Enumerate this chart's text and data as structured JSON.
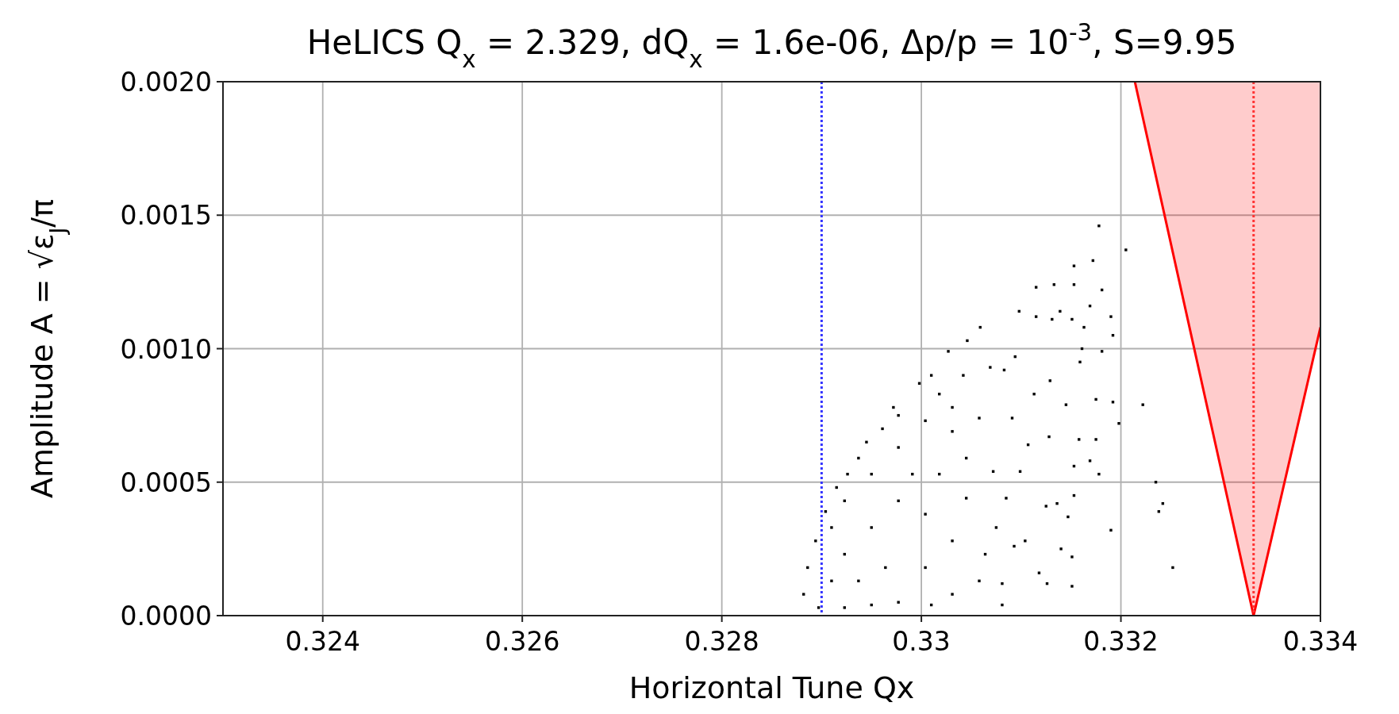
{
  "chart_data": {
    "type": "scatter",
    "title": "HeLICS Q$_{x}$ = 2.329, dQ$_{x}$ = 1.6e-06, Δp/p = 10$^{-3}$, S=9.95",
    "xlabel": "Horizontal Tune Qx",
    "ylabel": "Amplitude A = √ε$_{J}$/π",
    "xlim": [
      0.323,
      0.334
    ],
    "xticks": [
      0.324,
      0.326,
      0.328,
      0.33,
      0.332,
      0.334
    ],
    "ylim": [
      0,
      0.002
    ],
    "yticks": [
      {
        "value": 0,
        "label": "0.0000"
      },
      {
        "value": 0.0005,
        "label": "0.0005"
      },
      {
        "value": 0.001,
        "label": "0.0010"
      },
      {
        "value": 0.0015,
        "label": "0.0015"
      },
      {
        "value": 0.002,
        "label": "0.0020"
      }
    ],
    "grid": true,
    "marker": "square",
    "ref_lines": [
      {
        "axis": "x",
        "value": 0.329,
        "color": "#3333ff",
        "line_style": "dotted"
      },
      {
        "axis": "x",
        "value": 0.33333,
        "color": "#ff3333",
        "line_style": "dotted"
      }
    ],
    "series": [
      {
        "type": "line",
        "marker": "none",
        "color": "#ff0000",
        "x": [
          0.33214,
          0.33333,
          0.334
        ],
        "values": [
          0.002,
          0,
          0.00108
        ],
        "lower": [
          0.002,
          0,
          0.00108
        ],
        "upper": [
          0.002,
          0.002,
          0.002
        ]
      },
      {
        "color": "#000000",
        "x": [
          0.33178,
          0.33205,
          0.33172,
          0.33153,
          0.33181,
          0.33115,
          0.33133,
          0.33153,
          0.33098,
          0.33139,
          0.3319,
          0.33169,
          0.33115,
          0.33131,
          0.33151,
          0.33059,
          0.33192,
          0.33163,
          0.33046,
          0.33181,
          0.33161,
          0.33027,
          0.33222,
          0.33198,
          0.33192,
          0.33175,
          0.33235,
          0.33242,
          0.33238,
          0.33252,
          0.3319,
          0.33178,
          0.33175,
          0.33158,
          0.33169,
          0.33153,
          0.33153,
          0.33147,
          0.33151,
          0.33151,
          0.33126,
          0.3314,
          0.33125,
          0.33136,
          0.33081,
          0.33081,
          0.33118,
          0.33093,
          0.33104,
          0.33128,
          0.33145,
          0.33159,
          0.32998,
          0.3301,
          0.33042,
          0.33069,
          0.33094,
          0.33083,
          0.33113,
          0.33129,
          0.32972,
          0.32961,
          0.32945,
          0.32937,
          0.32926,
          0.32915,
          0.32904,
          0.32894,
          0.32886,
          0.32882,
          0.32897,
          0.32923,
          0.3295,
          0.32977,
          0.3301,
          0.33031,
          0.33058,
          0.33064,
          0.33075,
          0.33085,
          0.33099,
          0.33107,
          0.33091,
          0.33058,
          0.33031,
          0.33045,
          0.33072,
          0.33045,
          0.33031,
          0.33004,
          0.32923,
          0.3295,
          0.32977,
          0.3295,
          0.32977,
          0.33004,
          0.33018,
          0.32991,
          0.32964,
          0.32937,
          0.3291,
          0.32923,
          0.33004,
          0.33018,
          0.33031,
          0.32977,
          0.3291
        ],
        "values": [
          0.00146,
          0.00137,
          0.00133,
          0.00131,
          0.00122,
          0.00123,
          0.00124,
          0.00124,
          0.00114,
          0.00114,
          0.00112,
          0.00116,
          0.00112,
          0.00111,
          0.00111,
          0.00108,
          0.00105,
          0.00108,
          0.00103,
          0.00099,
          0.001,
          0.00099,
          0.00079,
          0.00072,
          0.0008,
          0.00081,
          0.0005,
          0.00042,
          0.00039,
          0.00018,
          0.00032,
          0.00053,
          0.00066,
          0.00066,
          0.00058,
          0.00056,
          0.00045,
          0.00037,
          0.00022,
          0.00011,
          0.00012,
          0.00025,
          0.00041,
          0.00042,
          4e-05,
          0.00012,
          0.00016,
          0.00026,
          0.00028,
          0.00067,
          0.00079,
          0.00095,
          0.00087,
          0.0009,
          0.0009,
          0.00093,
          0.00097,
          0.00092,
          0.00083,
          0.00088,
          0.00078,
          0.0007,
          0.00065,
          0.00059,
          0.00053,
          0.00048,
          0.00039,
          0.00028,
          0.00018,
          8e-05,
          3e-05,
          3e-05,
          4e-05,
          5e-05,
          4e-05,
          8e-05,
          0.00013,
          0.00023,
          0.00033,
          0.00044,
          0.00054,
          0.00064,
          0.00074,
          0.00074,
          0.00069,
          0.00059,
          0.00054,
          0.00044,
          0.00028,
          0.00018,
          0.00023,
          0.00033,
          0.00043,
          0.00053,
          0.00063,
          0.00073,
          0.00083,
          0.00053,
          0.00018,
          0.00013,
          0.00033,
          0.00043,
          0.00038,
          0.00053,
          0.00078,
          0.00075,
          0.00013
        ]
      }
    ]
  }
}
